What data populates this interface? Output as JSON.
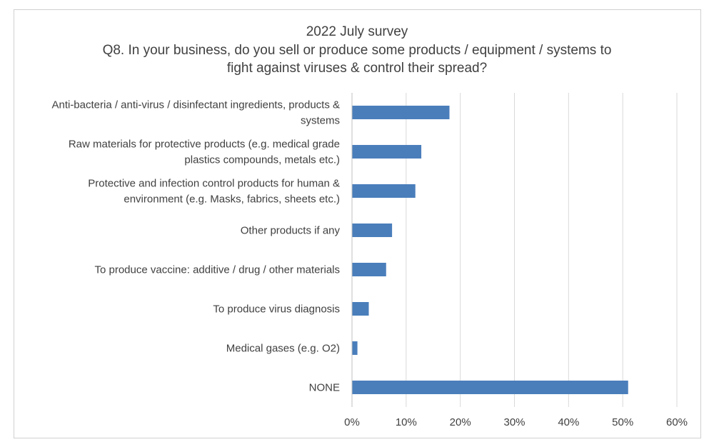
{
  "chart_data": {
    "type": "bar",
    "orientation": "horizontal",
    "title": "2022 July survey",
    "subtitle": [
      "Q8.  In your business, do you sell or produce some products / equipment / systems to",
      "fight against viruses & control their spread?"
    ],
    "categories": [
      [
        "Anti-bacteria / anti-virus / disinfectant ingredients, products &",
        "systems"
      ],
      [
        "Raw materials for protective products (e.g. medical grade",
        "plastics compounds, metals etc.)"
      ],
      [
        "Protective and infection control products for human &",
        "environment (e.g. Masks, fabrics, sheets etc.)"
      ],
      [
        "Other products if any"
      ],
      [
        "To produce vaccine: additive / drug / other materials"
      ],
      [
        "To produce virus diagnosis"
      ],
      [
        "Medical gases (e.g. O2)"
      ],
      [
        "NONE"
      ]
    ],
    "values": [
      18.0,
      12.8,
      11.7,
      7.4,
      6.3,
      3.1,
      1.0,
      51.0
    ],
    "value_unit": "%",
    "xlim": [
      0,
      60
    ],
    "x_ticks": [
      "0%",
      "10%",
      "20%",
      "30%",
      "40%",
      "50%",
      "60%"
    ],
    "x_tick_values": [
      0,
      10,
      20,
      30,
      40,
      50,
      60
    ],
    "grid": "vertical",
    "legend": "none",
    "bar_color": "#4a7ebb",
    "grid_color": "#d9d9d9"
  }
}
